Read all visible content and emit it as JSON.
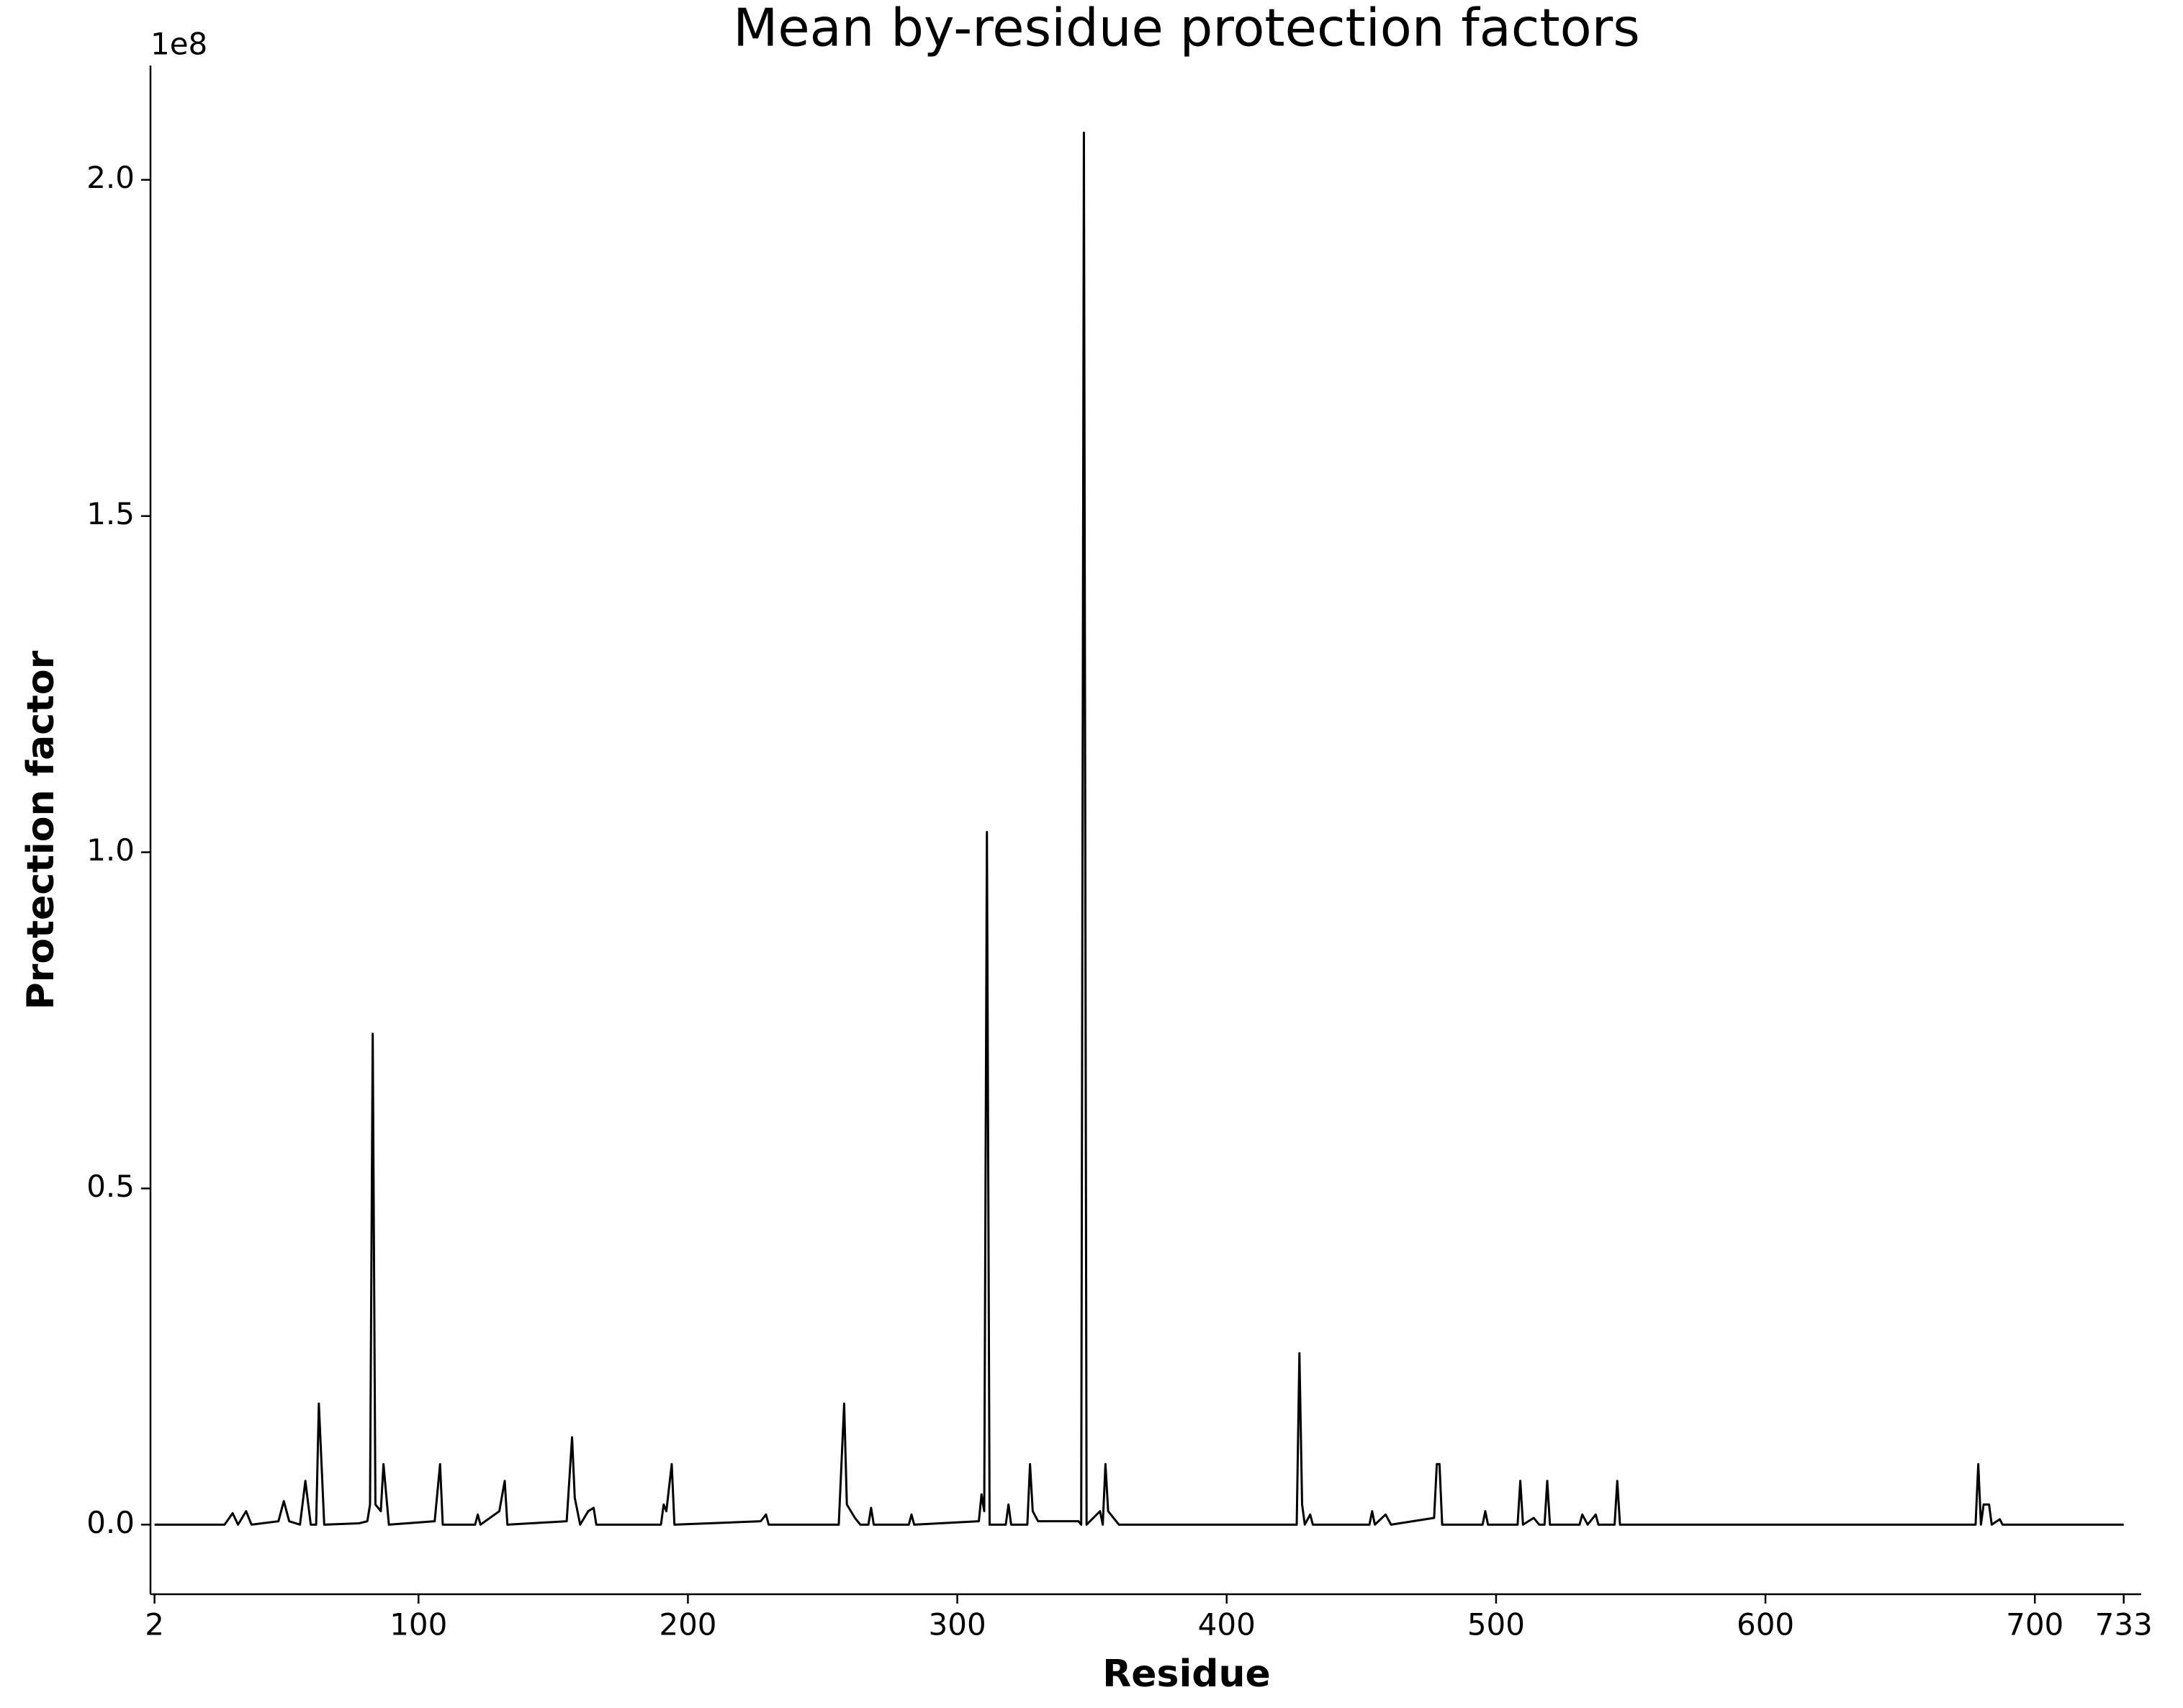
{
  "chart_data": {
    "type": "line",
    "title": "Mean by-residue protection factors",
    "xlabel": "Residue",
    "ylabel": "Protection factor",
    "y_offset_label": "1e8",
    "x": [
      2,
      28,
      31,
      33,
      36,
      38,
      48,
      50,
      52,
      56,
      58,
      60,
      62,
      63,
      65,
      78,
      81,
      82,
      83,
      84,
      86,
      87,
      89,
      106,
      108,
      109,
      121,
      122,
      123,
      130,
      132,
      133,
      155,
      157,
      158,
      160,
      163,
      165,
      166,
      190,
      191,
      192,
      194,
      195,
      227,
      229,
      230,
      256,
      258,
      259,
      262,
      264,
      267,
      268,
      269,
      282,
      283,
      284,
      308,
      309,
      310,
      311,
      312,
      318,
      319,
      320,
      326,
      327,
      328,
      330,
      345,
      346,
      347,
      348,
      353,
      354,
      355,
      356,
      358,
      360,
      426,
      427,
      428,
      429,
      431,
      432,
      453,
      454,
      455,
      459,
      461,
      477,
      478,
      479,
      480,
      495,
      496,
      497,
      508,
      509,
      510,
      514,
      516,
      518,
      519,
      520,
      531,
      532,
      534,
      537,
      538,
      544,
      545,
      546,
      678,
      679,
      680,
      681,
      683,
      684,
      687,
      688,
      733
    ],
    "series": [
      {
        "color": "#000000",
        "values": [
          0,
          0,
          0.017,
          0,
          0.02,
          0,
          0.005,
          0.035,
          0.005,
          0,
          0.065,
          0,
          0,
          0.18,
          0,
          0.002,
          0.005,
          0.03,
          0.73,
          0.03,
          0.02,
          0.09,
          0,
          0.005,
          0.09,
          0,
          0,
          0.015,
          0,
          0.02,
          0.065,
          0,
          0.005,
          0.13,
          0.04,
          0,
          0.02,
          0.025,
          0,
          0,
          0.03,
          0.02,
          0.09,
          0,
          0.005,
          0.015,
          0,
          0,
          0.18,
          0.03,
          0.01,
          0,
          0,
          0.025,
          0,
          0,
          0.015,
          0,
          0.005,
          0.045,
          0.02,
          1.03,
          0,
          0,
          0.03,
          0,
          0,
          0.09,
          0.02,
          0.005,
          0.005,
          0,
          2.07,
          0,
          0.02,
          0,
          0.09,
          0.02,
          0.01,
          0,
          0,
          0.255,
          0.03,
          0,
          0.015,
          0,
          0,
          0.02,
          0,
          0.015,
          0,
          0.01,
          0.09,
          0.09,
          0,
          0,
          0.02,
          0,
          0,
          0.065,
          0,
          0.01,
          0,
          0,
          0.065,
          0,
          0,
          0.015,
          0,
          0.015,
          0,
          0,
          0.065,
          0,
          0,
          0.09,
          0,
          0.03,
          0.03,
          0,
          0.008,
          0,
          0
        ]
      }
    ],
    "xlim": [
      0.5,
      739.5
    ],
    "ylim": [
      -0.1035,
      2.17
    ],
    "xticks": [
      2,
      100,
      200,
      300,
      400,
      500,
      600,
      700,
      733
    ],
    "yticks": [
      {
        "value": 0,
        "label": "0.0"
      },
      0.5,
      {
        "value": 1,
        "label": "1.0"
      },
      1.5,
      {
        "value": 2,
        "label": "2.0"
      }
    ],
    "grid": false
  }
}
